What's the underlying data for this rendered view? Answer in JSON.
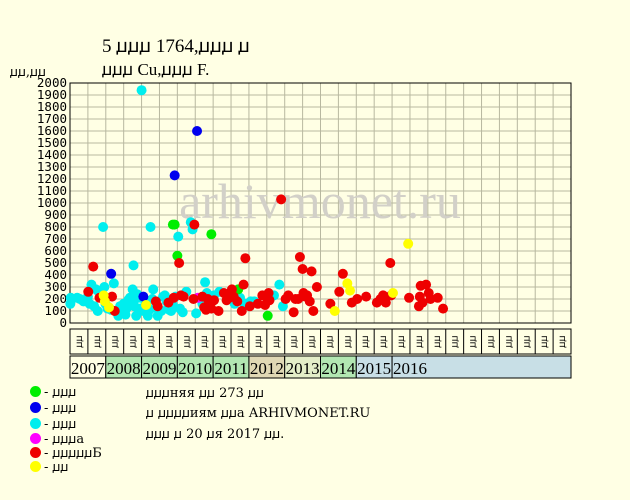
{
  "header": {
    "title_line1": "5 ꙡꙡꙡ 1764,ꙡꙡꙡ ꙡ",
    "title_line2": "ꙡꙡꙡ Cu,ꙡꙡꙡ F."
  },
  "watermark": "arhivmonet.ru",
  "legend": [
    {
      "label": "- ꙡꙡꙡ",
      "color": "#00ee00"
    },
    {
      "label": "- ꙡꙡꙡ",
      "color": "#0000ee"
    },
    {
      "label": "- ꙡꙡꙡ",
      "color": "#00eeee"
    },
    {
      "label": "- ꙡꙡꙡa",
      "color": "#ff00ff"
    },
    {
      "label": "- ꙡꙡꙡꙡꙡБ",
      "color": "#ee0000"
    },
    {
      "label": "- ꙡꙡ",
      "color": "#ffff00"
    }
  ],
  "info": [
    "ꙡꙡꙡняя ꙡꙡ 273 ꙡꙡ",
    "ꙡ ꙡꙡꙡꙡиям ꙡꙡa ARHIVMONET.RU",
    "ꙡꙡꙡ ꙡ 20 ꙡя 2017 ꙡꙡ."
  ],
  "chart_data": {
    "type": "scatter",
    "ylabel": "ꙡꙡ,ꙡꙡ",
    "ylim": [
      0,
      2000
    ],
    "yticks": [
      0,
      100,
      200,
      300,
      400,
      500,
      600,
      700,
      800,
      900,
      1000,
      1100,
      1200,
      1300,
      1400,
      1500,
      1600,
      1700,
      1800,
      1900,
      2000
    ],
    "xlim": [
      0,
      28
    ],
    "quarter_label_base": [
      "ꙡꙡ",
      "ꙡꙡ",
      "ꙡꙡ",
      "ꙡꙡ"
    ],
    "years": [
      {
        "label": "2007",
        "color": "#ffffe4"
      },
      {
        "label": "2008",
        "color": "#b2e7b2"
      },
      {
        "label": "2009",
        "color": "#b2e7b2"
      },
      {
        "label": "2010",
        "color": "#b2e7b2"
      },
      {
        "label": "2011",
        "color": "#b2e7b2"
      },
      {
        "label": "2012",
        "color": "#e0d8b4"
      },
      {
        "label": "2013",
        "color": "#e4eec8"
      },
      {
        "label": "2014",
        "color": "#b2e7b2"
      },
      {
        "label": "2015",
        "color": "#c8dfe6"
      },
      {
        "label": "2016",
        "color": "#c8dfe6"
      }
    ],
    "series": [
      {
        "color": "#00eeee",
        "points": [
          [
            0.02,
            160
          ],
          [
            0.04,
            210
          ],
          [
            0.4,
            210
          ],
          [
            0.55,
            200
          ],
          [
            0.75,
            180
          ],
          [
            0.9,
            180
          ],
          [
            1,
            220
          ],
          [
            1.1,
            160
          ],
          [
            1.2,
            320
          ],
          [
            1.35,
            140
          ],
          [
            1.45,
            280
          ],
          [
            1.55,
            100
          ],
          [
            1.6,
            260
          ],
          [
            1.72,
            230
          ],
          [
            1.85,
            800
          ],
          [
            1.92,
            300
          ],
          [
            1.98,
            160
          ],
          [
            2.1,
            120
          ],
          [
            2.3,
            110
          ],
          [
            2.45,
            330
          ],
          [
            2.6,
            90
          ],
          [
            2.7,
            60
          ],
          [
            2.8,
            140
          ],
          [
            2.9,
            80
          ],
          [
            3,
            160
          ],
          [
            3.1,
            70
          ],
          [
            3.15,
            120
          ],
          [
            3.25,
            190
          ],
          [
            3.35,
            210
          ],
          [
            3.45,
            180
          ],
          [
            3.5,
            280
          ],
          [
            3.55,
            480
          ],
          [
            3.6,
            140
          ],
          [
            3.7,
            60
          ],
          [
            3.75,
            240
          ],
          [
            3.8,
            210
          ],
          [
            3.9,
            120
          ],
          [
            4,
            1940
          ],
          [
            4.1,
            100
          ],
          [
            4.2,
            180
          ],
          [
            4.3,
            140
          ],
          [
            4.35,
            60
          ],
          [
            4.45,
            110
          ],
          [
            4.5,
            800
          ],
          [
            4.6,
            200
          ],
          [
            4.65,
            280
          ],
          [
            4.8,
            130
          ],
          [
            4.9,
            60
          ],
          [
            5.1,
            100
          ],
          [
            5.2,
            220
          ],
          [
            5.3,
            230
          ],
          [
            5.4,
            180
          ],
          [
            5.5,
            140
          ],
          [
            5.55,
            110
          ],
          [
            5.65,
            100
          ],
          [
            5.75,
            150
          ],
          [
            5.9,
            220
          ],
          [
            6.05,
            720
          ],
          [
            6.15,
            120
          ],
          [
            6.3,
            90
          ],
          [
            6.5,
            260
          ],
          [
            6.75,
            840
          ],
          [
            6.85,
            780
          ],
          [
            7.05,
            80
          ],
          [
            7.4,
            160
          ],
          [
            7.55,
            340
          ],
          [
            7.65,
            250
          ],
          [
            8.05,
            230
          ],
          [
            8.35,
            260
          ],
          [
            9.2,
            160
          ],
          [
            9.5,
            210
          ],
          [
            9.75,
            160
          ],
          [
            10.1,
            180
          ],
          [
            10.3,
            180
          ],
          [
            11.4,
            230
          ],
          [
            11.7,
            320
          ],
          [
            11.9,
            140
          ]
        ]
      },
      {
        "color": "#00ee00",
        "points": [
          [
            5.75,
            820
          ],
          [
            5.85,
            820
          ],
          [
            6,
            560
          ],
          [
            7.9,
            740
          ],
          [
            9.4,
            280
          ],
          [
            11.05,
            60
          ]
        ]
      },
      {
        "color": "#0000ee",
        "points": [
          [
            2.3,
            410
          ],
          [
            5.85,
            1230
          ],
          [
            7.1,
            1600
          ],
          [
            4.1,
            220
          ]
        ]
      },
      {
        "color": "#ff00ff",
        "points": [
          [
            7.15,
            210
          ]
        ]
      },
      {
        "color": "#ee0000",
        "points": [
          [
            1.02,
            260
          ],
          [
            1.3,
            470
          ],
          [
            1.65,
            210
          ],
          [
            2.35,
            220
          ],
          [
            2.5,
            100
          ],
          [
            4.8,
            180
          ],
          [
            4.9,
            140
          ],
          [
            5.5,
            170
          ],
          [
            5.8,
            210
          ],
          [
            6.1,
            500
          ],
          [
            6.2,
            230
          ],
          [
            6.35,
            220
          ],
          [
            6.9,
            200
          ],
          [
            6.95,
            820
          ],
          [
            7.4,
            220
          ],
          [
            7.5,
            130
          ],
          [
            7.6,
            110
          ],
          [
            7.7,
            200
          ],
          [
            7.8,
            170
          ],
          [
            7.9,
            120
          ],
          [
            8.05,
            190
          ],
          [
            8.3,
            100
          ],
          [
            8.6,
            250
          ],
          [
            8.75,
            190
          ],
          [
            8.9,
            210
          ],
          [
            9.05,
            280
          ],
          [
            9.15,
            220
          ],
          [
            9.35,
            180
          ],
          [
            9.6,
            100
          ],
          [
            9.7,
            320
          ],
          [
            9.8,
            540
          ],
          [
            10.05,
            140
          ],
          [
            10.5,
            160
          ],
          [
            10.75,
            230
          ],
          [
            10.9,
            150
          ],
          [
            11,
            210
          ],
          [
            11.1,
            250
          ],
          [
            11.15,
            190
          ],
          [
            11.8,
            1030
          ],
          [
            12.05,
            200
          ],
          [
            12.2,
            230
          ],
          [
            12.5,
            90
          ],
          [
            12.6,
            200
          ],
          [
            12.75,
            200
          ],
          [
            12.85,
            550
          ],
          [
            13,
            450
          ],
          [
            13.05,
            250
          ],
          [
            13.15,
            220
          ],
          [
            13.25,
            230
          ],
          [
            13.4,
            180
          ],
          [
            13.5,
            430
          ],
          [
            13.6,
            100
          ],
          [
            13.8,
            300
          ],
          [
            14.55,
            160
          ],
          [
            15.05,
            260
          ],
          [
            15.25,
            410
          ],
          [
            15.75,
            170
          ],
          [
            16.05,
            200
          ],
          [
            16.55,
            220
          ],
          [
            17.15,
            170
          ],
          [
            17.35,
            200
          ],
          [
            17.5,
            230
          ],
          [
            17.65,
            170
          ],
          [
            17.9,
            500
          ],
          [
            17.95,
            230
          ],
          [
            18.95,
            210
          ],
          [
            19.5,
            140
          ],
          [
            19.55,
            220
          ],
          [
            19.6,
            310
          ],
          [
            19.7,
            170
          ],
          [
            19.9,
            320
          ],
          [
            20.05,
            250
          ],
          [
            20.15,
            200
          ],
          [
            20.55,
            210
          ],
          [
            20.85,
            120
          ]
        ]
      },
      {
        "color": "#ffff00",
        "points": [
          [
            1.88,
            230
          ],
          [
            1.95,
            180
          ],
          [
            2.18,
            130
          ],
          [
            4.25,
            150
          ],
          [
            14.8,
            100
          ],
          [
            15.5,
            330
          ],
          [
            15.65,
            270
          ],
          [
            18.05,
            250
          ],
          [
            18.9,
            660
          ]
        ]
      }
    ]
  }
}
